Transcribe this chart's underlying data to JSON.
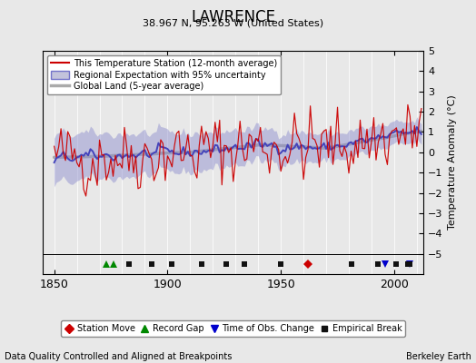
{
  "title": "LAWRENCE",
  "subtitle": "38.967 N, 95.263 W (United States)",
  "ylabel": "Temperature Anomaly (°C)",
  "xlabel_note": "Data Quality Controlled and Aligned at Breakpoints",
  "credit": "Berkeley Earth",
  "ylim": [
    -6,
    5
  ],
  "yticks": [
    -5,
    -4,
    -3,
    -2,
    -1,
    0,
    1,
    2,
    3,
    4,
    5
  ],
  "xlim": [
    1845,
    2013
  ],
  "xticks": [
    1850,
    1900,
    1950,
    2000
  ],
  "bg_color": "#e8e8e8",
  "plot_bg": "#e8e8e8",
  "station_color": "#cc0000",
  "regional_color": "#4444bb",
  "regional_fill": "#8888cc",
  "global_color": "#aaaaaa",
  "legend_items": [
    {
      "label": "This Temperature Station (12-month average)",
      "color": "#cc0000",
      "lw": 1.2
    },
    {
      "label": "Regional Expectation with 95% uncertainty",
      "color": "#4444bb",
      "lw": 1.5
    },
    {
      "label": "Global Land (5-year average)",
      "color": "#aaaaaa",
      "lw": 2.5
    }
  ],
  "marker_legend": [
    {
      "label": "Station Move",
      "marker": "D",
      "color": "#cc0000"
    },
    {
      "label": "Record Gap",
      "marker": "^",
      "color": "#008800"
    },
    {
      "label": "Time of Obs. Change",
      "marker": "v",
      "color": "#0000cc"
    },
    {
      "label": "Empirical Break",
      "marker": "s",
      "color": "#111111"
    }
  ],
  "station_moves": [
    1962
  ],
  "record_gaps": [
    1873,
    1876
  ],
  "time_obs_changes": [
    1996,
    2007
  ],
  "empirical_breaks": [
    1883,
    1893,
    1902,
    1915,
    1926,
    1934,
    1950,
    1981,
    1993,
    2001,
    2006,
    2007
  ],
  "seed": 42
}
